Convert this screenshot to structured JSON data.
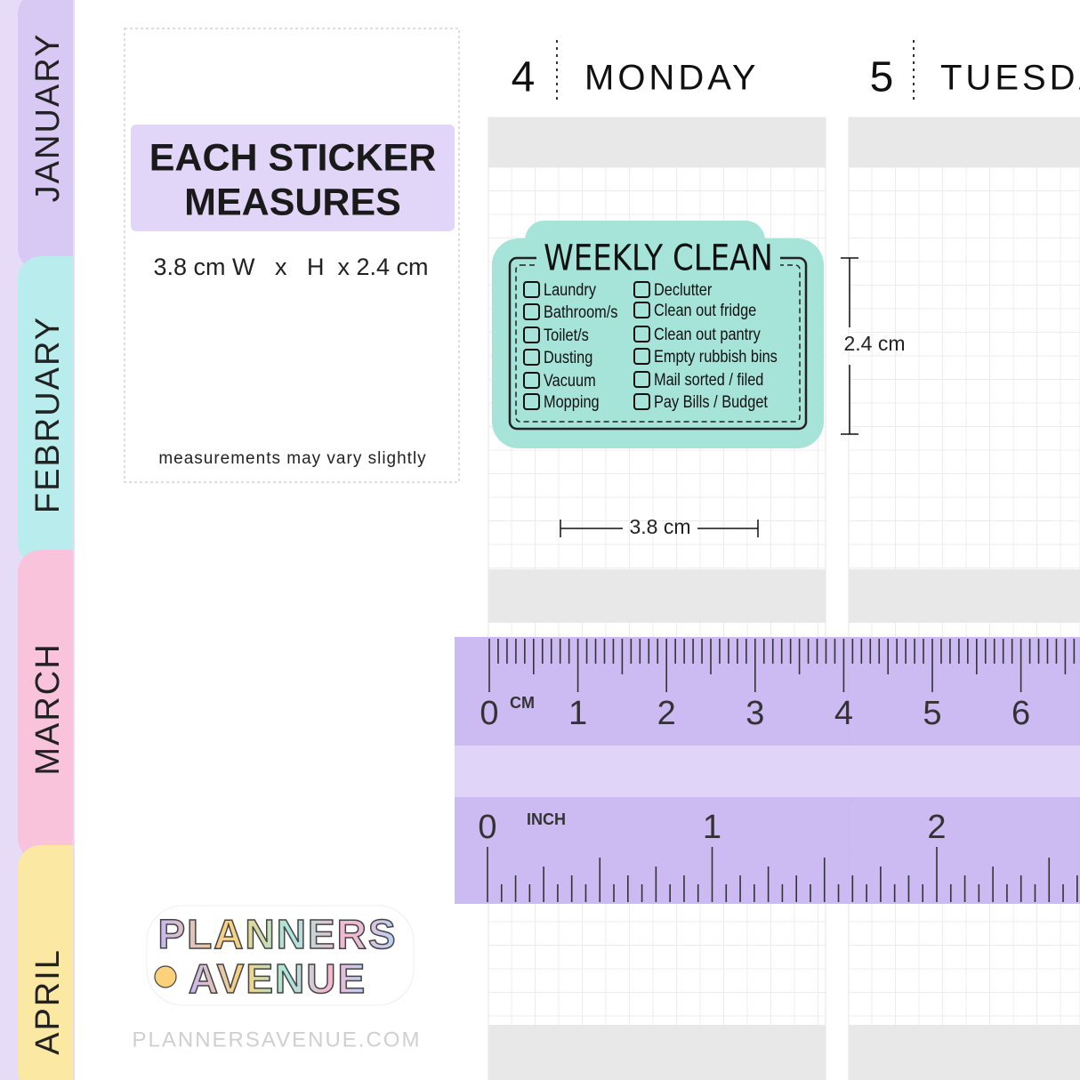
{
  "tabs": [
    "JANUARY",
    "FEBRUARY",
    "MARCH",
    "APRIL"
  ],
  "size_card": {
    "title_lines": [
      "EACH STICKER",
      "MEASURES"
    ],
    "dimensions": "3.8 cm W   x   H  x 2.4 cm",
    "note": "measurements may vary slightly"
  },
  "days": [
    {
      "number": 4,
      "name": "MONDAY"
    },
    {
      "number": 5,
      "name": "TUESDAY"
    }
  ],
  "sticker": {
    "title": "WEEKLY CLEAN",
    "left_items": [
      "Laundry",
      "Bathroom/s",
      "Toilet/s",
      "Dusting",
      "Vacuum",
      "Mopping"
    ],
    "right_items": [
      "Declutter",
      "Clean out fridge",
      "Clean out pantry",
      "Empty rubbish bins",
      "Mail sorted / filed",
      "Pay Bills / Budget"
    ]
  },
  "dimension_labels": {
    "height": "2.4 cm",
    "width": "3.8 cm"
  },
  "ruler": {
    "cm_unit": "CM",
    "cm_numbers": [
      0,
      1,
      2,
      3,
      4,
      5,
      6
    ],
    "inch_unit": "INCH",
    "inch_numbers": [
      0,
      1,
      2
    ]
  },
  "logo": {
    "lines": [
      "PLANNERS",
      "AVENUE"
    ]
  },
  "website": "PLANNERSAVENUE.COM"
}
